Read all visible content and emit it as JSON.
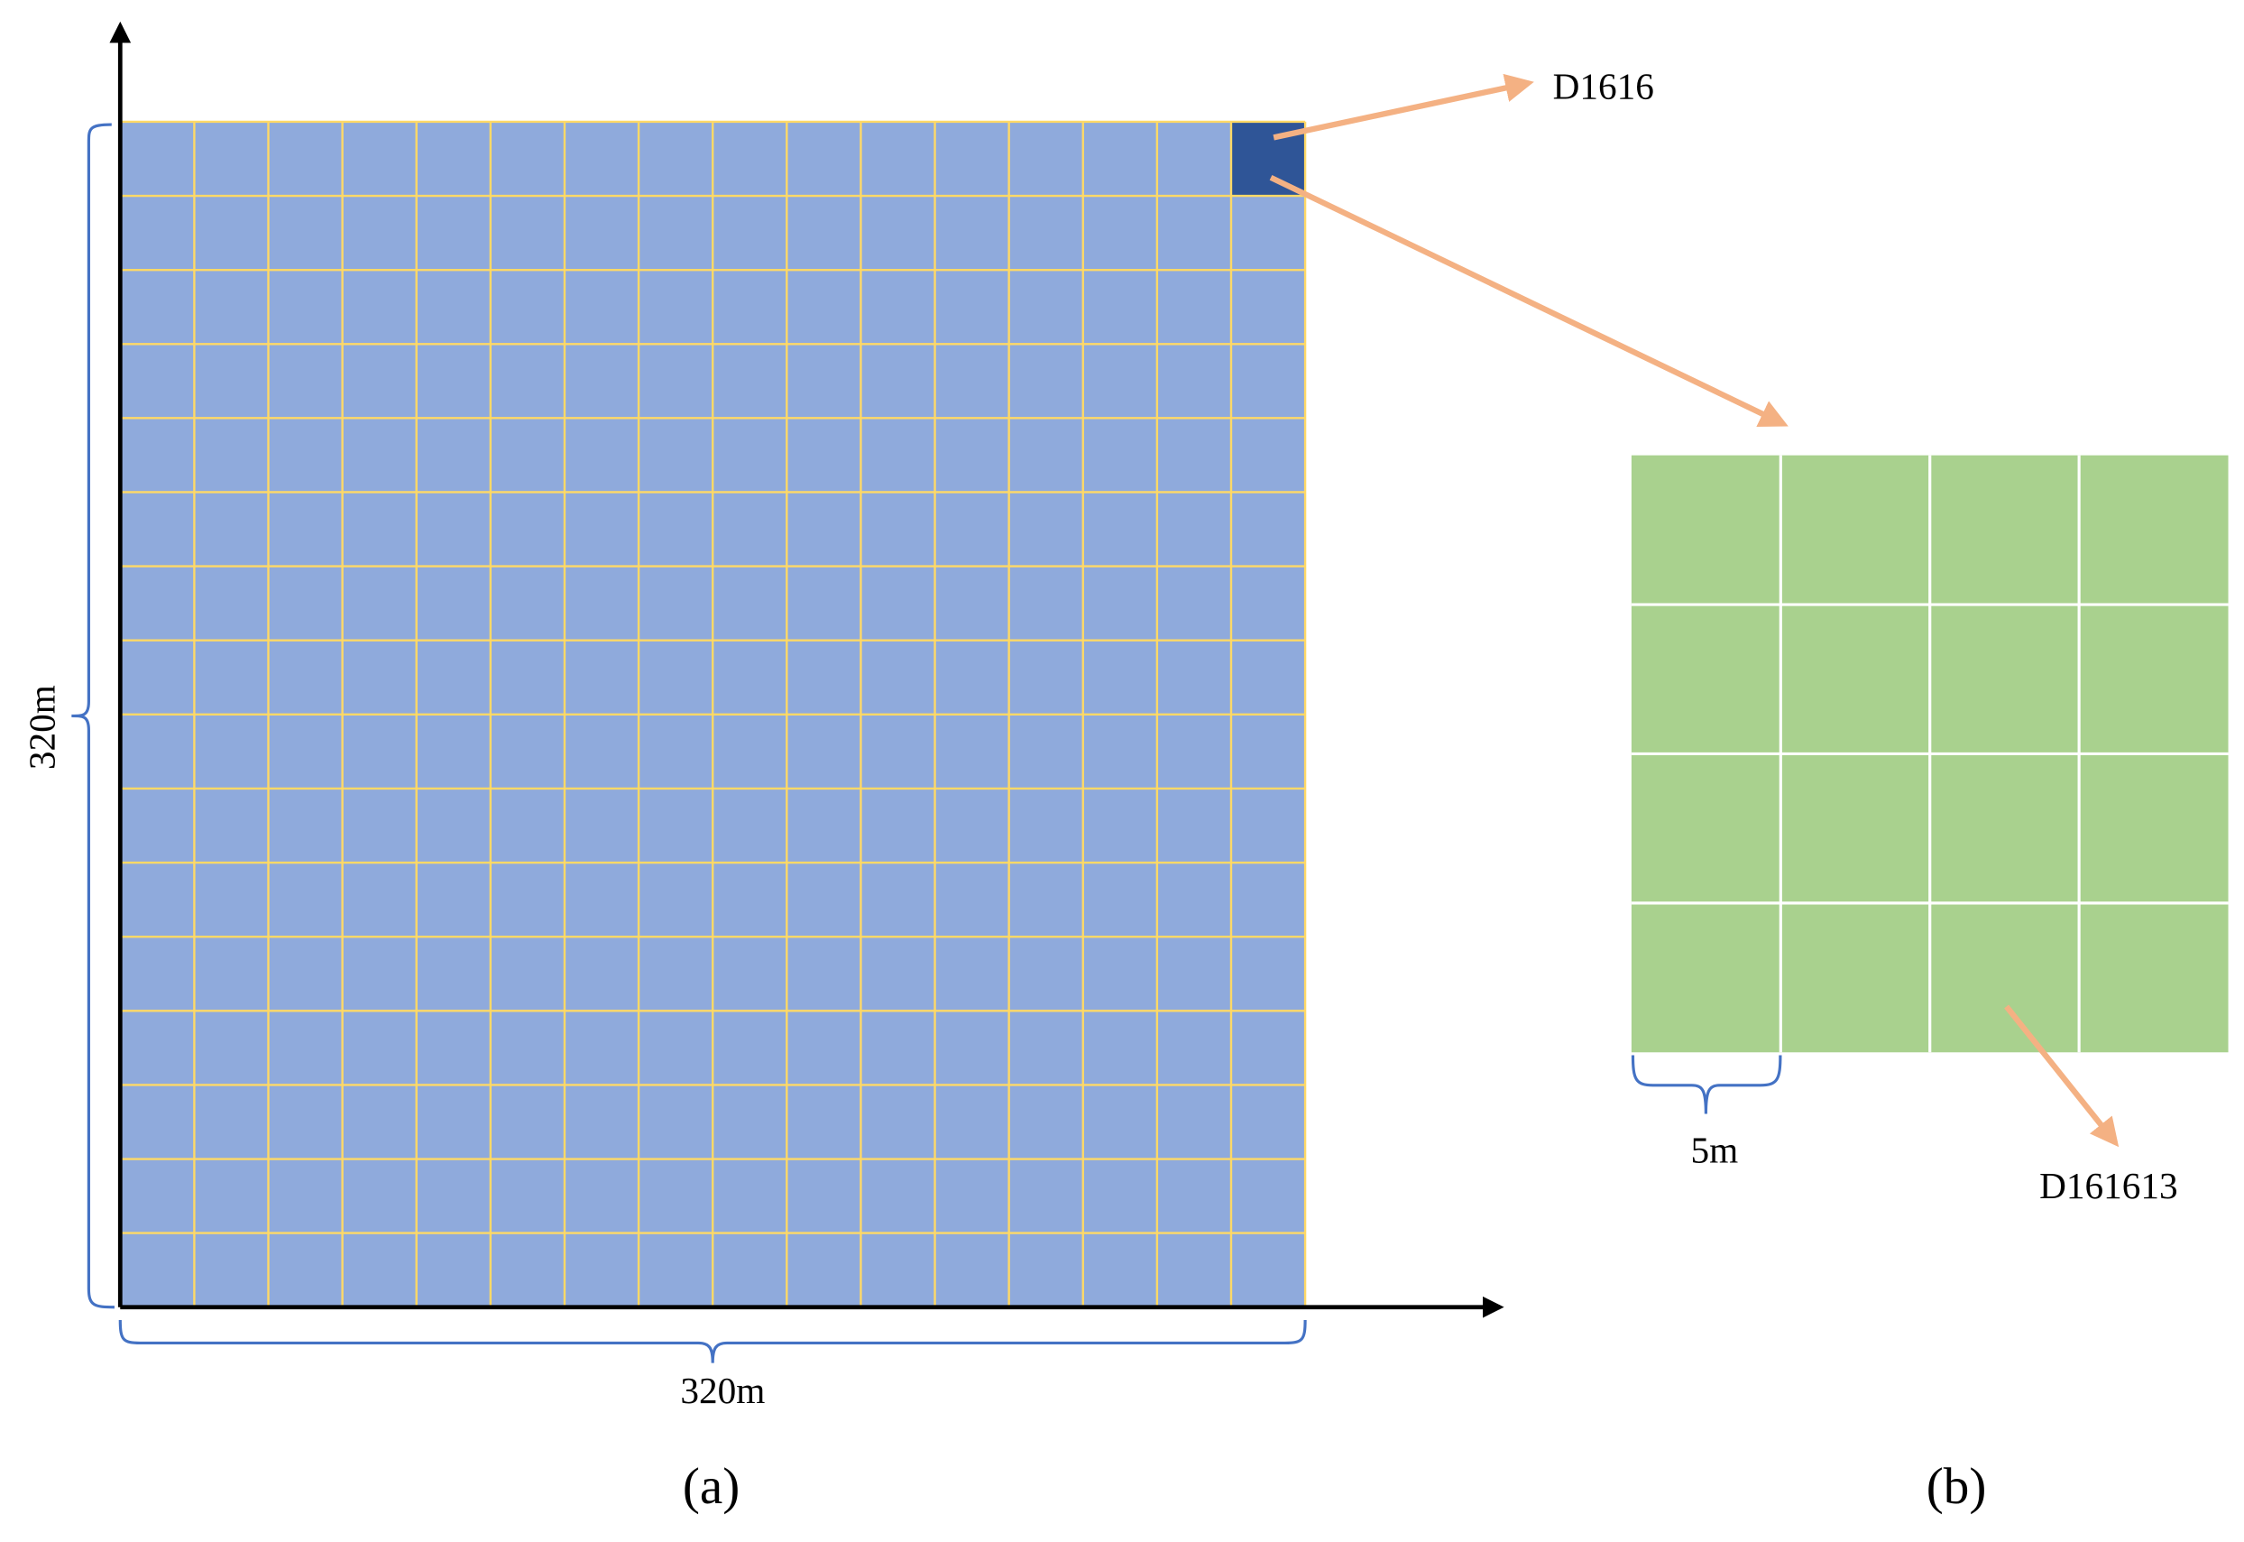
{
  "panel_a": {
    "cell_label": "D1616",
    "x_dimension": "320m",
    "y_dimension": "320m",
    "caption": "(a)"
  },
  "panel_b": {
    "cell_label": "D161613",
    "cell_size": "5m",
    "caption": "(b)"
  }
}
